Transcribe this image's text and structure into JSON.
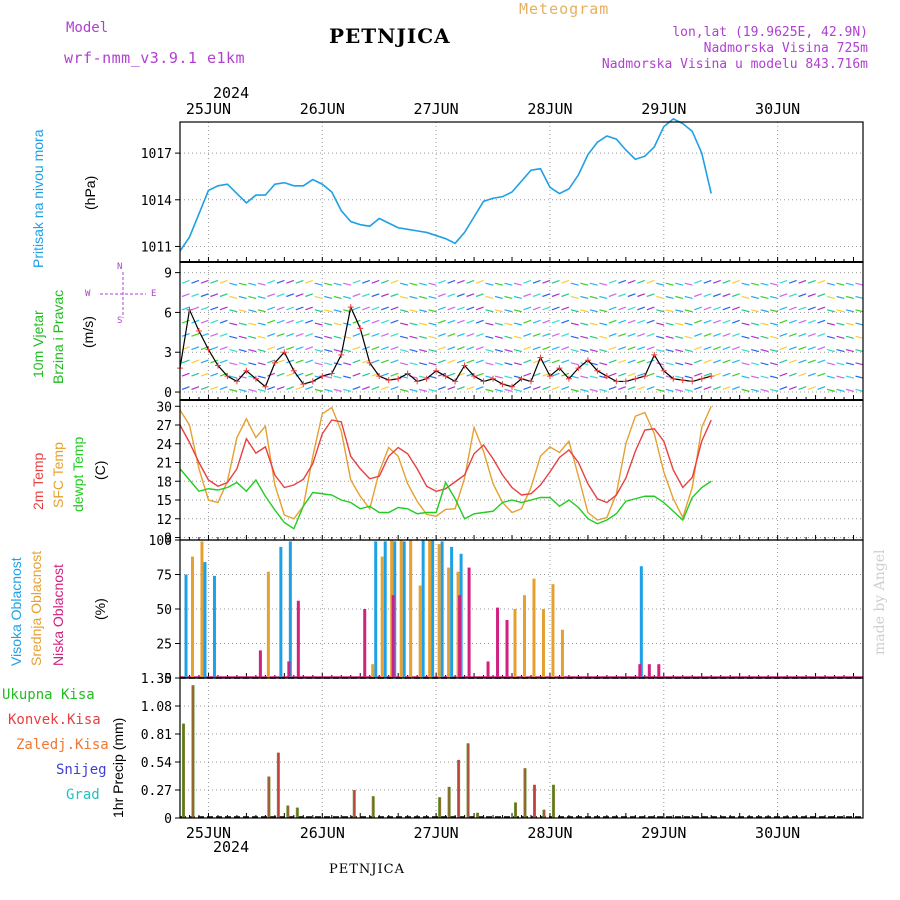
{
  "header": {
    "model_label": "Model",
    "model_name": "wrf-nmm_v3.9.1 e1km",
    "station": "PETNJICA",
    "meteogram": "Meteogram",
    "lonlat": "lon,lat (19.9625E, 42.9N)",
    "altitude": "Nadmorska Visina 725m",
    "model_altitude": "Nadmorska Visina u modelu 843.716m",
    "footer_station": "PETNJICA",
    "watermark": "made by Angel"
  },
  "time_axis": {
    "year": "2024",
    "days": [
      "25JUN",
      "26JUN",
      "27JUN",
      "28JUN",
      "29JUN",
      "30JUN"
    ],
    "hours": 72,
    "first_midnight_hour": 3
  },
  "colors": {
    "pressure": "#1ea0e6",
    "wind_label": "#22bb22",
    "wind_purple": "#b040d0",
    "temp_2m": "#e84040",
    "temp_sfc": "#e6a030",
    "dewpt": "#22cc22",
    "cloud_high": "#1ea0e6",
    "cloud_mid": "#e6a030",
    "cloud_low": "#d02080",
    "precip_total": "#22bb22",
    "precip_conv": "#e84040",
    "precip_frozen": "#ee7733",
    "snow": "#4040d0",
    "grad": "#20c0c0",
    "title_purple": "#b040d0",
    "meteogram_orange": "#e6b060"
  },
  "chart_data": [
    {
      "type": "line",
      "panel": "pressure",
      "ylabel": "Pritisak na nivou mora",
      "unit": "(hPa)",
      "yticks": [
        1011,
        1014,
        1017
      ],
      "ylim": [
        1010.0,
        1019.0
      ],
      "series": [
        {
          "values": [
            1010.7,
            1011.6,
            1013.1,
            1014.6,
            1014.9,
            1015.0,
            1014.4,
            1013.8,
            1014.3,
            1014.3,
            1015.0,
            1015.1,
            1014.9,
            1014.9,
            1015.3,
            1015.0,
            1014.5,
            1013.3,
            1012.6,
            1012.4,
            1012.3,
            1012.8,
            1012.5,
            1012.2,
            1012.1,
            1012.0,
            1011.9,
            1011.7,
            1011.5,
            1011.2,
            1011.9,
            1012.9,
            1013.9,
            1014.1,
            1014.2,
            1014.5,
            1015.2,
            1015.9,
            1016.0,
            1014.8,
            1014.4,
            1014.7,
            1015.6,
            1016.9,
            1017.7,
            1018.1,
            1017.9,
            1017.2,
            1016.6,
            1016.8,
            1017.4,
            1018.7,
            1019.2,
            1018.9,
            1018.4,
            1017.0,
            1014.4
          ]
        }
      ]
    },
    {
      "type": "line",
      "panel": "wind",
      "ylabel": [
        "10m Vjetar",
        "Brzina i Pravac"
      ],
      "unit": "(m/s)",
      "compass": [
        "N",
        "E",
        "W",
        "S"
      ],
      "yticks": [
        0,
        3,
        6,
        9
      ],
      "ylim": [
        -0.6,
        9.8
      ],
      "series": [
        {
          "name": "10m Vjetar",
          "values": [
            1.8,
            6.2,
            4.6,
            3.2,
            2.0,
            1.2,
            0.8,
            1.6,
            1.0,
            0.4,
            2.2,
            3.0,
            1.6,
            0.6,
            0.8,
            1.2,
            1.4,
            2.8,
            6.4,
            4.8,
            2.2,
            1.2,
            0.9,
            1.0,
            1.4,
            0.8,
            1.0,
            1.6,
            1.2,
            0.8,
            2.0,
            1.2,
            0.8,
            1.0,
            0.6,
            0.4,
            1.0,
            0.8,
            2.6,
            1.2,
            1.8,
            1.0,
            1.8,
            2.4,
            1.6,
            1.2,
            0.8,
            0.8,
            1.0,
            1.2,
            2.8,
            1.6,
            1.0,
            0.9,
            0.8,
            1.0,
            1.2
          ]
        }
      ]
    },
    {
      "type": "line",
      "panel": "temperature",
      "ylabel": [
        "2m Temp",
        "SFC Temp",
        "dewpt Temp"
      ],
      "unit": "(C)",
      "yticks": [
        9,
        12,
        15,
        18,
        21,
        24,
        27,
        30
      ],
      "ylim": [
        8.6,
        31.0
      ],
      "series": [
        {
          "name": "2m Temp",
          "values": [
            27.0,
            24.2,
            21.0,
            18.2,
            17.2,
            17.8,
            20.0,
            24.8,
            22.5,
            23.5,
            19.0,
            17.0,
            17.4,
            18.3,
            20.8,
            25.6,
            27.8,
            27.5,
            22.0,
            20.0,
            18.4,
            18.8,
            22.0,
            23.4,
            22.4,
            20.0,
            17.2,
            16.4,
            16.8,
            17.9,
            19.0,
            22.4,
            23.8,
            21.6,
            19.0,
            17.0,
            15.8,
            16.0,
            17.4,
            19.5,
            21.8,
            23.0,
            21.0,
            17.6,
            15.2,
            14.6,
            15.8,
            18.5,
            22.8,
            26.2,
            26.4,
            24.4,
            19.8,
            17.0,
            18.6,
            24.4,
            27.8
          ]
        },
        {
          "name": "SFC Temp",
          "values": [
            29.4,
            27.0,
            20.0,
            15.0,
            14.6,
            18.0,
            25.0,
            28.0,
            25.0,
            26.8,
            17.4,
            12.6,
            12.0,
            14.0,
            22.0,
            28.8,
            29.8,
            26.0,
            18.2,
            15.6,
            13.6,
            19.5,
            23.4,
            22.0,
            17.6,
            14.8,
            12.7,
            12.4,
            13.5,
            13.6,
            18.5,
            26.6,
            22.8,
            17.6,
            14.6,
            13.0,
            13.6,
            17.0,
            22.0,
            23.5,
            22.6,
            24.4,
            18.8,
            13.0,
            11.8,
            12.2,
            16.0,
            24.0,
            28.4,
            29.0,
            25.6,
            19.5,
            15.2,
            12.2,
            17.0,
            26.6,
            30.0
          ]
        },
        {
          "name": "dewpt Temp",
          "values": [
            20.0,
            18.2,
            16.4,
            16.8,
            16.6,
            17.0,
            17.8,
            16.4,
            18.2,
            15.6,
            13.4,
            11.4,
            10.4,
            14.0,
            16.2,
            16.0,
            15.8,
            15.0,
            14.6,
            13.6,
            14.0,
            13.0,
            13.0,
            13.8,
            13.6,
            12.8,
            13.0,
            13.0,
            17.8,
            15.2,
            12.0,
            12.8,
            13.0,
            13.2,
            14.6,
            15.0,
            14.6,
            15.0,
            15.4,
            15.4,
            14.0,
            15.0,
            13.8,
            12.0,
            11.2,
            11.8,
            12.8,
            14.8,
            15.2,
            15.6,
            15.6,
            14.6,
            13.2,
            11.8,
            15.4,
            17.0,
            18.0
          ]
        }
      ]
    },
    {
      "type": "bar",
      "panel": "cloud",
      "ylabel": [
        "Visoka Oblacnost",
        "Srednja Oblacnost",
        "Niska Oblacnost"
      ],
      "unit": "(%)",
      "yticks": [
        0,
        25,
        50,
        75,
        100
      ],
      "ylim": [
        0,
        100
      ],
      "series": [
        {
          "name": "Visoka Oblacnost",
          "points": [
            [
              0,
              75
            ],
            [
              2,
              84
            ],
            [
              3,
              74
            ],
            [
              10,
              95
            ],
            [
              11,
              99
            ],
            [
              12,
              0
            ],
            [
              20,
              99
            ],
            [
              21,
              99
            ],
            [
              22,
              99
            ],
            [
              23,
              99
            ],
            [
              25,
              100
            ],
            [
              26,
              100
            ],
            [
              27,
              99
            ],
            [
              28,
              95
            ],
            [
              29,
              90
            ],
            [
              48,
              81
            ]
          ]
        },
        {
          "name": "Srednja Oblacnost",
          "points": [
            [
              1,
              88
            ],
            [
              2,
              99
            ],
            [
              9,
              77
            ],
            [
              20,
              10
            ],
            [
              21,
              88
            ],
            [
              22,
              100
            ],
            [
              23,
              100
            ],
            [
              24,
              100
            ],
            [
              25,
              67
            ],
            [
              26,
              100
            ],
            [
              27,
              97
            ],
            [
              28,
              80
            ],
            [
              29,
              77
            ],
            [
              35,
              50
            ],
            [
              36,
              60
            ],
            [
              37,
              72
            ],
            [
              38,
              50
            ],
            [
              39,
              68
            ],
            [
              40,
              35
            ]
          ]
        },
        {
          "name": "Niska Oblacnost",
          "points": [
            [
              8,
              20
            ],
            [
              11,
              12
            ],
            [
              12,
              56
            ],
            [
              19,
              50
            ],
            [
              22,
              60
            ],
            [
              29,
              60
            ],
            [
              30,
              80
            ],
            [
              32,
              12
            ],
            [
              33,
              51
            ],
            [
              34,
              42
            ],
            [
              48,
              10
            ],
            [
              49,
              10
            ],
            [
              50,
              10
            ]
          ]
        }
      ]
    },
    {
      "type": "bar",
      "panel": "precip",
      "ylabel": "1hr Precip (mm)",
      "legend": [
        "Ukupna Kisa",
        "Konvek.Kisa",
        "Zaledj.Kisa",
        "Snijeg",
        "Grad"
      ],
      "yticks": [
        0,
        0.27,
        0.54,
        0.81,
        1.08,
        1.35
      ],
      "ylim": [
        0,
        1.35
      ],
      "series": [
        {
          "name": "Ukupna Kisa",
          "points": [
            [
              0,
              0.91
            ],
            [
              1,
              1.28
            ],
            [
              9,
              0.4
            ],
            [
              10,
              0.63
            ],
            [
              11,
              0.12
            ],
            [
              12,
              0.1
            ],
            [
              18,
              0.27
            ],
            [
              20,
              0.21
            ],
            [
              27,
              0.2
            ],
            [
              28,
              0.3
            ],
            [
              29,
              0.56
            ],
            [
              30,
              0.72
            ],
            [
              31,
              0.05
            ],
            [
              35,
              0.15
            ],
            [
              36,
              0.48
            ],
            [
              37,
              0.32
            ],
            [
              38,
              0.08
            ],
            [
              39,
              0.32
            ]
          ]
        }
      ]
    }
  ]
}
